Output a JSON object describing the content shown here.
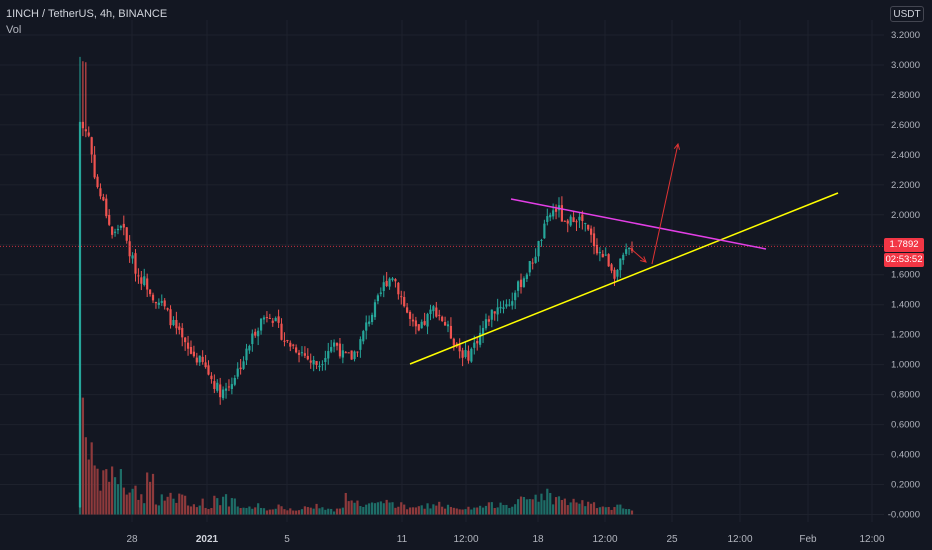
{
  "header": {
    "title": "1INCH / TetherUS, 4h, BINANCE",
    "volume_label": "Vol"
  },
  "price_axis": {
    "unit": "USDT",
    "ticks": [
      "3.2000",
      "3.0000",
      "2.8000",
      "2.6000",
      "2.4000",
      "2.2000",
      "2.0000",
      "1.8000",
      "1.6000",
      "1.4000",
      "1.2000",
      "1.0000",
      "0.8000",
      "0.6000",
      "0.4000",
      "0.2000",
      "-0.0000"
    ],
    "last_price": "1.7892",
    "countdown": "02:53:52"
  },
  "time_axis": {
    "labels": [
      {
        "text": "28",
        "bold": false
      },
      {
        "text": "2021",
        "bold": true
      },
      {
        "text": "5",
        "bold": false
      },
      {
        "text": "11",
        "bold": false
      },
      {
        "text": "12:00",
        "bold": false
      },
      {
        "text": "18",
        "bold": false
      },
      {
        "text": "12:00",
        "bold": false
      },
      {
        "text": "25",
        "bold": false
      },
      {
        "text": "12:00",
        "bold": false
      },
      {
        "text": "Feb",
        "bold": false
      },
      {
        "text": "12:00",
        "bold": false
      }
    ]
  },
  "colors": {
    "background": "#131722",
    "up": "#26a69a",
    "down": "#ef5350",
    "vol_up": "#1e6d67",
    "vol_down": "#8e3a3c",
    "support_line": "#ffff00",
    "resistance_line": "#e33fe6",
    "arrow": "#e03333",
    "last_price_line": "#f23645"
  },
  "chart_data": {
    "type": "candlestick",
    "symbol": "1INCH / TetherUS",
    "interval": "4h",
    "exchange": "BINANCE",
    "y_range": [
      -0.05,
      3.3
    ],
    "last_price": 1.7892,
    "close_path": [
      [
        0,
        2.6
      ],
      [
        1,
        2.55
      ],
      [
        2,
        2.2
      ],
      [
        3,
        2.05
      ],
      [
        4,
        1.85
      ],
      [
        5,
        1.95
      ],
      [
        6,
        1.75
      ],
      [
        7,
        1.6
      ],
      [
        8,
        1.55
      ],
      [
        9,
        1.45
      ],
      [
        10,
        1.4
      ],
      [
        11,
        1.3
      ],
      [
        12,
        1.2
      ],
      [
        13,
        1.1
      ],
      [
        14,
        1.05
      ],
      [
        15,
        1.0
      ],
      [
        16,
        0.9
      ],
      [
        17,
        0.82
      ],
      [
        18,
        0.85
      ],
      [
        19,
        0.95
      ],
      [
        20,
        1.05
      ],
      [
        21,
        1.2
      ],
      [
        22,
        1.3
      ],
      [
        23,
        1.35
      ],
      [
        24,
        1.25
      ],
      [
        25,
        1.15
      ],
      [
        26,
        1.12
      ],
      [
        27,
        1.08
      ],
      [
        28,
        1.02
      ],
      [
        29,
        1.0
      ],
      [
        30,
        1.1
      ],
      [
        31,
        1.15
      ],
      [
        32,
        1.05
      ],
      [
        33,
        1.05
      ],
      [
        34,
        1.15
      ],
      [
        35,
        1.3
      ],
      [
        36,
        1.4
      ],
      [
        37,
        1.55
      ],
      [
        38,
        1.6
      ],
      [
        39,
        1.45
      ],
      [
        40,
        1.3
      ],
      [
        41,
        1.2
      ],
      [
        42,
        1.3
      ],
      [
        43,
        1.38
      ],
      [
        44,
        1.3
      ],
      [
        45,
        1.2
      ],
      [
        46,
        1.1
      ],
      [
        47,
        1.05
      ],
      [
        48,
        1.15
      ],
      [
        49,
        1.25
      ],
      [
        50,
        1.35
      ],
      [
        51,
        1.4
      ],
      [
        52,
        1.4
      ],
      [
        53,
        1.5
      ],
      [
        54,
        1.6
      ],
      [
        55,
        1.7
      ],
      [
        56,
        1.85
      ],
      [
        57,
        2.0
      ],
      [
        58,
        2.05
      ],
      [
        59,
        1.9
      ],
      [
        60,
        2.0
      ],
      [
        61,
        1.95
      ],
      [
        62,
        1.85
      ],
      [
        63,
        1.75
      ],
      [
        64,
        1.7
      ],
      [
        65,
        1.6
      ],
      [
        66,
        1.72
      ],
      [
        67,
        1.79
      ]
    ],
    "volume_profile": [
      0.78,
      0.35,
      0.22,
      0.28,
      0.25,
      0.15,
      0.18,
      0.12,
      0.22,
      0.1,
      0.14,
      0.08,
      0.12,
      0.06,
      0.08,
      0.05,
      0.12,
      0.1,
      0.08,
      0.05,
      0.04,
      0.06,
      0.04,
      0.03,
      0.05,
      0.04,
      0.03,
      0.05,
      0.06,
      0.04,
      0.03,
      0.05,
      0.12,
      0.08,
      0.05,
      0.06,
      0.07,
      0.1,
      0.06,
      0.05,
      0.04,
      0.05,
      0.06,
      0.07,
      0.05,
      0.04,
      0.03,
      0.04,
      0.05,
      0.06,
      0.07,
      0.08,
      0.07,
      0.09,
      0.1,
      0.12,
      0.14,
      0.11,
      0.1,
      0.08,
      0.09,
      0.07,
      0.06,
      0.05,
      0.04,
      0.05,
      0.03,
      0.02
    ]
  }
}
